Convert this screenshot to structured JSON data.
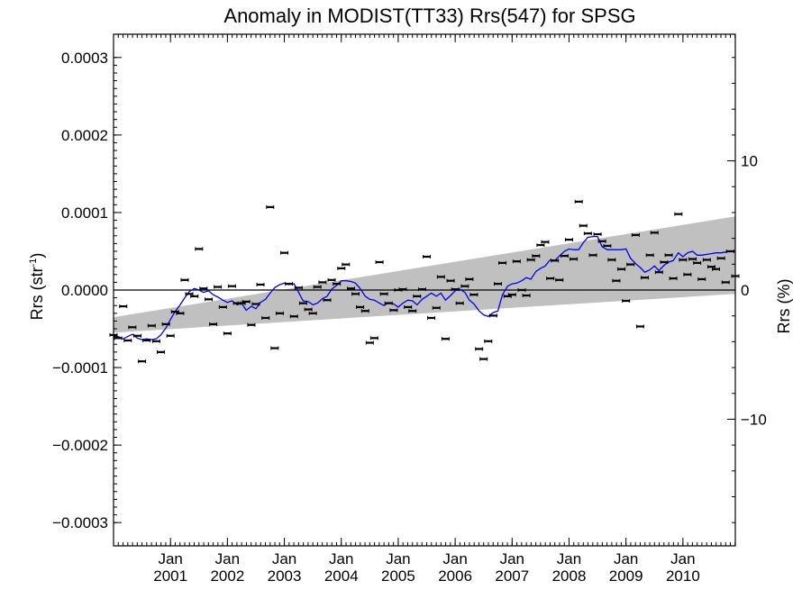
{
  "chart_data": {
    "type": "scatter",
    "title": "Anomaly in MODIST(TT33) Rrs(547) for SPSG",
    "ylabel_left": {
      "base": "Rrs (str",
      "sup": "-1",
      "close": ")"
    },
    "ylabel_right": "Rrs (%)",
    "xlim": [
      2000.0,
      2010.92
    ],
    "ylim_left": [
      -0.00033,
      0.00033
    ],
    "ylim_right": [
      -19.8,
      19.8
    ],
    "yticks_left": [
      {
        "value": -0.0003,
        "label": "−0.0003"
      },
      {
        "value": -0.0002,
        "label": "−0.0002"
      },
      {
        "value": -0.0001,
        "label": "−0.0001"
      },
      {
        "value": 0.0,
        "label": "0.0000"
      },
      {
        "value": 0.0001,
        "label": "0.0001"
      },
      {
        "value": 0.0002,
        "label": "0.0002"
      },
      {
        "value": 0.0003,
        "label": "0.0003"
      }
    ],
    "yticks_right": [
      {
        "value": -10,
        "label": "−10"
      },
      {
        "value": 0,
        "label": "0"
      },
      {
        "value": 10,
        "label": "10"
      }
    ],
    "xticks": [
      {
        "value": 2001.0,
        "month": "Jan",
        "year": "2001"
      },
      {
        "value": 2002.0,
        "month": "Jan",
        "year": "2002"
      },
      {
        "value": 2003.0,
        "month": "Jan",
        "year": "2003"
      },
      {
        "value": 2004.0,
        "month": "Jan",
        "year": "2004"
      },
      {
        "value": 2005.0,
        "month": "Jan",
        "year": "2005"
      },
      {
        "value": 2006.0,
        "month": "Jan",
        "year": "2006"
      },
      {
        "value": 2007.0,
        "month": "Jan",
        "year": "2007"
      },
      {
        "value": 2008.0,
        "month": "Jan",
        "year": "2008"
      },
      {
        "value": 2009.0,
        "month": "Jan",
        "year": "2009"
      },
      {
        "value": 2010.0,
        "month": "Jan",
        "year": "2010"
      }
    ],
    "band": {
      "x": [
        2000.0,
        2010.92
      ],
      "upper": [
        -3.5e-05,
        9.5e-05
      ],
      "lower": [
        -5.5e-05,
        -5e-06
      ]
    },
    "zero_line": 0,
    "points": {
      "x": [
        2000.0,
        2000.08,
        2000.17,
        2000.25,
        2000.33,
        2000.42,
        2000.5,
        2000.58,
        2000.67,
        2000.75,
        2000.83,
        2000.92,
        2001.0,
        2001.08,
        2001.17,
        2001.25,
        2001.33,
        2001.42,
        2001.5,
        2001.58,
        2001.67,
        2001.75,
        2001.83,
        2001.92,
        2002.0,
        2002.08,
        2002.17,
        2002.25,
        2002.33,
        2002.42,
        2002.5,
        2002.58,
        2002.67,
        2002.75,
        2002.83,
        2002.92,
        2003.0,
        2003.08,
        2003.17,
        2003.25,
        2003.33,
        2003.42,
        2003.5,
        2003.58,
        2003.67,
        2003.75,
        2003.83,
        2003.92,
        2004.0,
        2004.08,
        2004.17,
        2004.25,
        2004.33,
        2004.42,
        2004.5,
        2004.58,
        2004.67,
        2004.75,
        2004.83,
        2004.92,
        2005.0,
        2005.08,
        2005.17,
        2005.25,
        2005.33,
        2005.42,
        2005.5,
        2005.58,
        2005.67,
        2005.75,
        2005.83,
        2005.92,
        2006.0,
        2006.08,
        2006.17,
        2006.25,
        2006.33,
        2006.42,
        2006.5,
        2006.58,
        2006.67,
        2006.75,
        2006.83,
        2006.92,
        2007.0,
        2007.08,
        2007.17,
        2007.25,
        2007.33,
        2007.42,
        2007.5,
        2007.58,
        2007.67,
        2007.75,
        2007.83,
        2007.92,
        2008.0,
        2008.08,
        2008.17,
        2008.25,
        2008.33,
        2008.42,
        2008.5,
        2008.58,
        2008.67,
        2008.75,
        2008.83,
        2008.92,
        2009.0,
        2009.08,
        2009.17,
        2009.25,
        2009.33,
        2009.42,
        2009.5,
        2009.58,
        2009.67,
        2009.75,
        2009.83,
        2009.92,
        2010.0,
        2010.08,
        2010.17,
        2010.25,
        2010.33,
        2010.42,
        2010.5,
        2010.58,
        2010.67,
        2010.75,
        2010.83,
        2010.92
      ],
      "y": [
        -5.8e-05,
        -6.2e-05,
        -2.1e-05,
        -6.5e-05,
        -4.8e-05,
        -5.9e-05,
        -9.2e-05,
        -6.5e-05,
        -4.6e-05,
        -6.6e-05,
        -8e-05,
        -4.4e-05,
        -5.9e-05,
        -2.8e-05,
        -3e-05,
        1.3e-05,
        -5e-06,
        -8e-06,
        5.3e-05,
        2e-06,
        -1.2e-05,
        -4.4e-05,
        4e-06,
        -2.2e-05,
        -5.6e-05,
        5e-06,
        -1.7e-05,
        -1.7e-05,
        -1.5e-05,
        -4.5e-05,
        -1.8e-05,
        7e-06,
        -3.6e-05,
        0.000107,
        -7.5e-05,
        -3e-05,
        4.8e-05,
        8e-06,
        -3.4e-05,
        3e-06,
        -1.7e-05,
        -2.5e-05,
        -3e-05,
        4e-06,
        1e-05,
        -1.3e-05,
        1.3e-05,
        8e-06,
        2.8e-05,
        3.3e-05,
        2e-06,
        -5e-06,
        -2.2e-05,
        -2.7e-05,
        -6.8e-05,
        -6.2e-05,
        3.6e-05,
        -5e-06,
        -1.7e-05,
        -2.6e-05,
        0.0,
        1e-06,
        -2.2e-05,
        -2.7e-05,
        -8e-06,
        1e-06,
        4.3e-05,
        -3.6e-05,
        -2.3e-05,
        1.7e-05,
        -6.3e-05,
        1.2e-05,
        1e-06,
        -1.7e-05,
        5e-06,
        1.4e-05,
        -6e-06,
        -7.6e-05,
        -8.9e-05,
        -6.6e-05,
        -3.3e-05,
        8e-06,
        3.5e-05,
        -8e-06,
        -6e-06,
        3.7e-05,
        0.0,
        -7e-06,
        3.9e-05,
        4.4e-05,
        5.8e-05,
        6.2e-05,
        1.5e-05,
        3.8e-05,
        1.3e-05,
        4.4e-05,
        6.5e-05,
        4e-05,
        0.000114,
        8.3e-05,
        7.3e-05,
        4.5e-05,
        7.2e-05,
        6.3e-05,
        5.7e-05,
        3.9e-05,
        1.2e-05,
        2.7e-05,
        -1.4e-05,
        3.3e-05,
        7.1e-05,
        -4.7e-05,
        1.6e-05,
        4.5e-05,
        7.4e-05,
        2.3e-05,
        3.6e-05,
        4.5e-05,
        1.5e-05,
        9.8e-05,
        3.9e-05,
        2e-05,
        4e-05,
        3.5e-05,
        1.4e-05,
        3.9e-05,
        3e-05,
        2.7e-05,
        4.1e-05,
        1e-05,
        5e-05,
        1.8e-05
      ]
    },
    "moving_average": {
      "x": [
        2000.0,
        2000.08,
        2000.17,
        2000.25,
        2000.33,
        2000.42,
        2000.5,
        2000.58,
        2000.67,
        2000.75,
        2000.83,
        2000.92,
        2001.0,
        2001.08,
        2001.17,
        2001.25,
        2001.33,
        2001.42,
        2001.5,
        2001.58,
        2001.67,
        2001.75,
        2001.83,
        2001.92,
        2002.0,
        2002.08,
        2002.17,
        2002.25,
        2002.33,
        2002.42,
        2002.5,
        2002.58,
        2002.67,
        2002.75,
        2002.83,
        2002.92,
        2003.0,
        2003.08,
        2003.17,
        2003.25,
        2003.33,
        2003.42,
        2003.5,
        2003.58,
        2003.67,
        2003.75,
        2003.83,
        2003.92,
        2004.0,
        2004.08,
        2004.17,
        2004.25,
        2004.33,
        2004.42,
        2004.5,
        2004.58,
        2004.67,
        2004.75,
        2004.83,
        2004.92,
        2005.0,
        2005.08,
        2005.17,
        2005.25,
        2005.33,
        2005.42,
        2005.5,
        2005.58,
        2005.67,
        2005.75,
        2005.83,
        2005.92,
        2006.0,
        2006.08,
        2006.17,
        2006.25,
        2006.33,
        2006.42,
        2006.5,
        2006.58,
        2006.67,
        2006.75,
        2006.83,
        2006.92,
        2007.0,
        2007.08,
        2007.17,
        2007.25,
        2007.33,
        2007.42,
        2007.5,
        2007.58,
        2007.67,
        2007.75,
        2007.83,
        2007.92,
        2008.0,
        2008.08,
        2008.17,
        2008.25,
        2008.33,
        2008.42,
        2008.5,
        2008.58,
        2008.67,
        2008.75,
        2008.83,
        2008.92,
        2009.0,
        2009.08,
        2009.17,
        2009.25,
        2009.33,
        2009.42,
        2009.5,
        2009.58,
        2009.67,
        2009.75,
        2009.83,
        2009.92,
        2010.0,
        2010.08,
        2010.17,
        2010.25,
        2010.33,
        2010.42,
        2010.5,
        2010.58,
        2010.67,
        2010.75,
        2010.83,
        2010.92
      ],
      "y": [
        -6e-05,
        -6e-05,
        -6.3e-05,
        -6e-05,
        -5.7e-05,
        -6.2e-05,
        -6.4e-05,
        -6.3e-05,
        -6.4e-05,
        -6.3e-05,
        -5.8e-05,
        -4.9e-05,
        -3.8e-05,
        -2.8e-05,
        -1.9e-05,
        -1e-05,
        -2e-06,
        2e-06,
        0.0,
        -3e-06,
        -1e-06,
        -6e-06,
        -9e-06,
        -1.3e-05,
        -1.6e-05,
        -1.4e-05,
        -1.9e-05,
        -1.7e-05,
        -2.6e-05,
        -2.1e-05,
        -2.4e-05,
        -1.6e-05,
        -1.2e-05,
        -4e-06,
        3e-06,
        7e-06,
        9e-06,
        7e-06,
        8e-06,
        -3e-06,
        -1.4e-05,
        -1.5e-05,
        -1.9e-05,
        -1.7e-05,
        -1.1e-05,
        -8e-06,
        1e-06,
        6e-06,
        1.2e-05,
        1.2e-05,
        1.1e-05,
        9e-06,
        2e-06,
        -8e-06,
        -1.2e-05,
        -1.3e-05,
        -1.7e-05,
        -2e-05,
        -1.6e-05,
        -1.8e-05,
        -2.2e-05,
        -1.7e-05,
        -1.3e-05,
        -1.4e-05,
        -1.9e-05,
        -1.2e-05,
        -8e-06,
        -4e-06,
        -8e-06,
        -4e-06,
        -1.3e-05,
        -7e-06,
        -1e-06,
        1e-06,
        -3e-06,
        -1.3e-05,
        -1.8e-05,
        -2.7e-05,
        -3.2e-05,
        -3.4e-05,
        -2.9e-05,
        -2.7e-05,
        -6e-06,
        5e-06,
        8e-06,
        9e-06,
        1.2e-05,
        1.6e-05,
        1.4e-05,
        2.4e-05,
        2.8e-05,
        3.1e-05,
        3.9e-05,
        3.8e-05,
        4.4e-05,
        5e-05,
        5.3e-05,
        5.2e-05,
        5.2e-05,
        6.1e-05,
        6.8e-05,
        6.9e-05,
        6.9e-05,
        5.6e-05,
        5.2e-05,
        5.2e-05,
        5.2e-05,
        5.2e-05,
        5.3e-05,
        4.1e-05,
        3.4e-05,
        2.9e-05,
        2.3e-05,
        2.6e-05,
        3.1e-05,
        2.5e-05,
        3.2e-05,
        3.6e-05,
        3.8e-05,
        4.8e-05,
        4.3e-05,
        4.8e-05,
        5e-05,
        4.5e-05,
        4.5e-05,
        4.6e-05,
        4.7e-05,
        4.8e-05,
        4.8e-05,
        4.9e-05,
        5e-05,
        5e-05
      ]
    },
    "colors": {
      "band": "#c0c0c0",
      "moving_average": "#0000ee",
      "points": "#000000",
      "axes": "#000000"
    },
    "legend": "none",
    "grid": false
  }
}
